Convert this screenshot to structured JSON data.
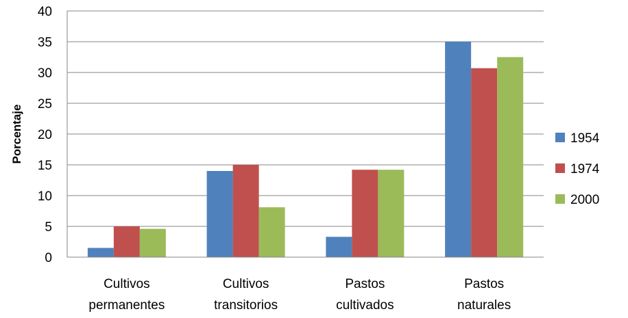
{
  "chart_data": {
    "type": "bar",
    "title": "",
    "xlabel": "",
    "ylabel": "Porcentaje",
    "ylim": [
      0,
      40
    ],
    "yticks": [
      "0",
      "5",
      "10",
      "15",
      "20",
      "25",
      "30",
      "35",
      "40"
    ],
    "grid": true,
    "legend_position": "right",
    "categories": [
      [
        "Cultivos",
        "permanentes"
      ],
      [
        "Cultivos",
        "transitorios"
      ],
      [
        "Pastos",
        "cultivados"
      ],
      [
        "Pastos",
        "naturales"
      ]
    ],
    "series": [
      {
        "name": "1954",
        "color": "#4f81bd",
        "values": [
          1.5,
          14.0,
          3.3,
          35.0
        ]
      },
      {
        "name": "1974",
        "color": "#c0504d",
        "values": [
          5.0,
          15.0,
          14.2,
          30.7
        ]
      },
      {
        "name": "2000",
        "color": "#9bbb59",
        "values": [
          4.6,
          8.1,
          14.2,
          32.5
        ]
      }
    ]
  }
}
